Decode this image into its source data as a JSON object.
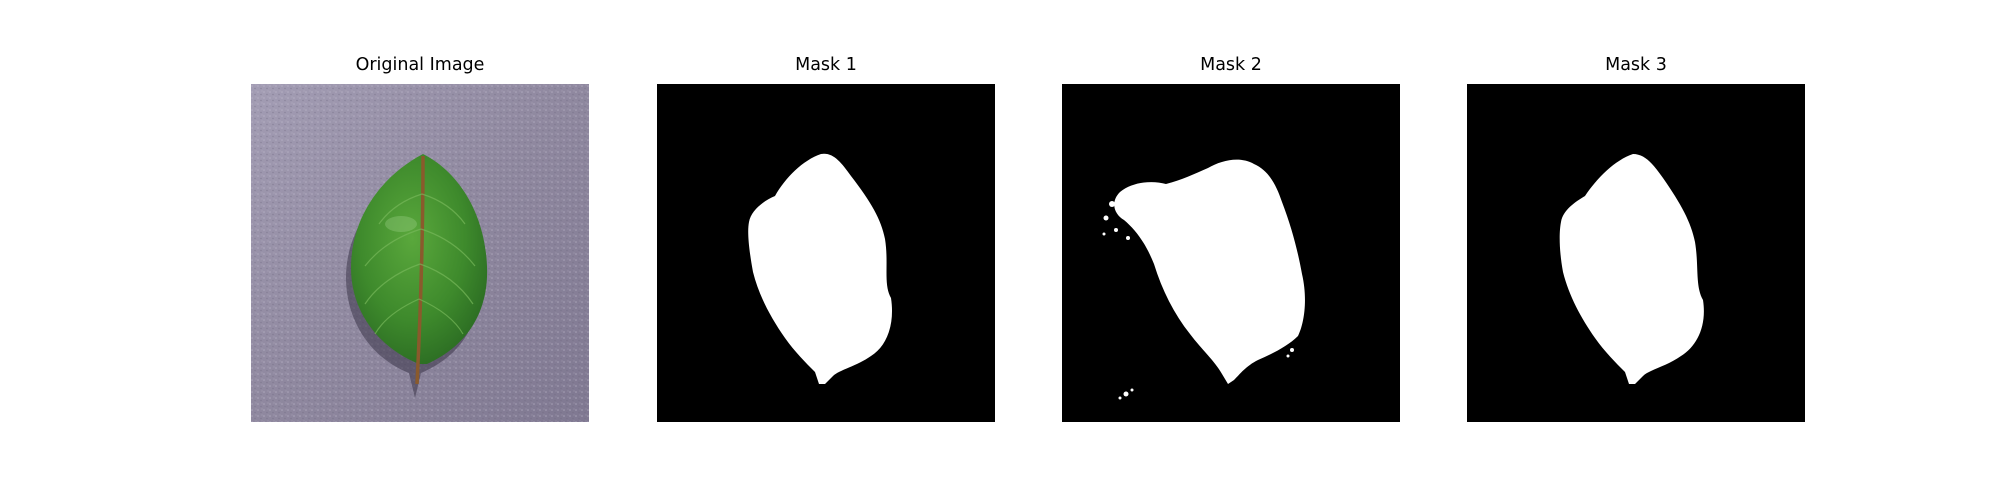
{
  "figure": {
    "panels": [
      {
        "title": "Original Image",
        "content": "leaf-photo"
      },
      {
        "title": "Mask 1",
        "content": "binary-mask"
      },
      {
        "title": "Mask 2",
        "content": "binary-mask"
      },
      {
        "title": "Mask 3",
        "content": "binary-mask"
      }
    ]
  },
  "colors": {
    "figure_background": "#ffffff",
    "mask_background": "#000000",
    "mask_foreground": "#ffffff",
    "photo_background": "#9a93aa",
    "leaf_green": "#3f8a2e",
    "leaf_stem": "#8a5a2c"
  }
}
